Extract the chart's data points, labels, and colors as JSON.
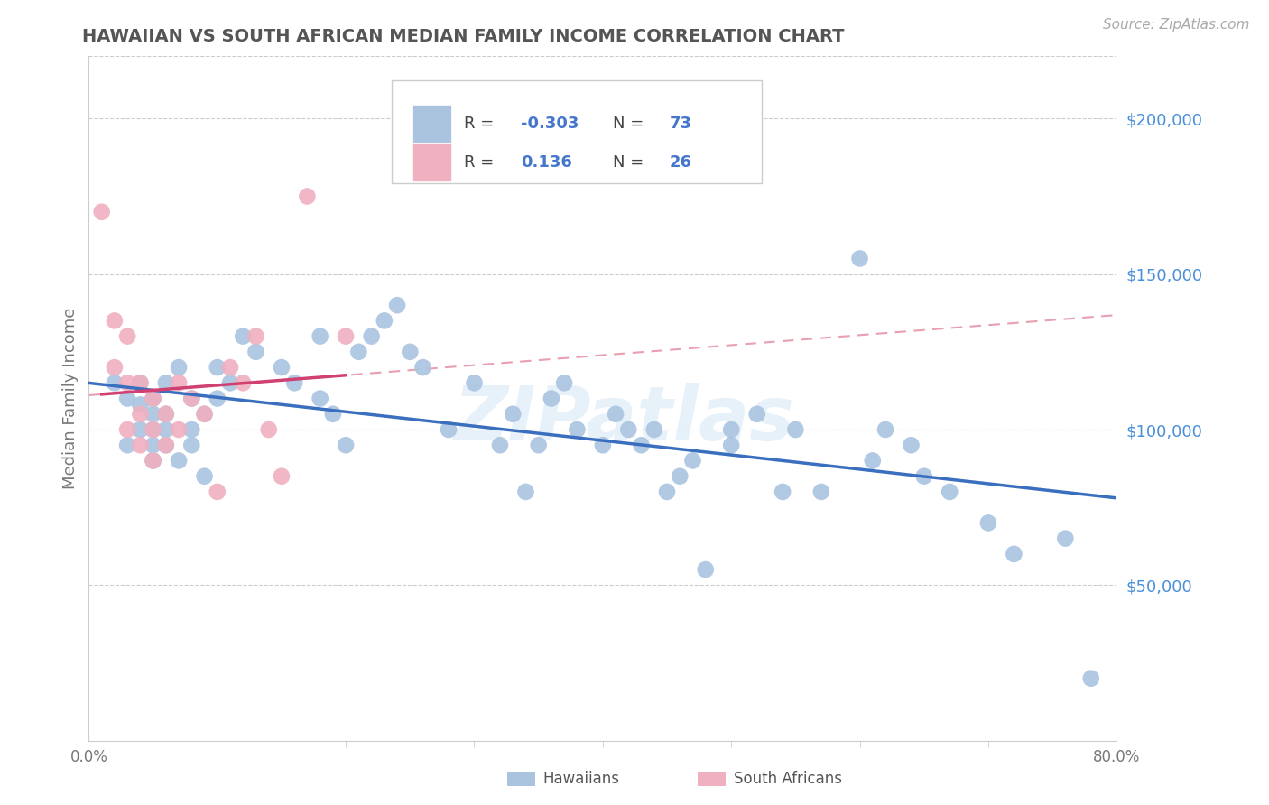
{
  "title": "HAWAIIAN VS SOUTH AFRICAN MEDIAN FAMILY INCOME CORRELATION CHART",
  "source": "Source: ZipAtlas.com",
  "ylabel": "Median Family Income",
  "watermark": "ZIPatlas",
  "ytick_values": [
    50000,
    100000,
    150000,
    200000
  ],
  "xlim": [
    0.0,
    0.8
  ],
  "ylim": [
    0,
    220000
  ],
  "blue_scatter_color": "#aac4e0",
  "pink_scatter_color": "#f0b0c0",
  "blue_line_color": "#3a6fbf",
  "pink_line_color": "#d04070",
  "pink_dash_color": "#e8a0b0",
  "grid_color": "#cccccc",
  "background_color": "#ffffff",
  "ytick_color": "#4a90d9",
  "xtick_color": "#777777",
  "title_color": "#555555",
  "source_color": "#aaaaaa",
  "legend_r_color": "#4477cc",
  "legend_r1": "-0.303",
  "legend_n1": "73",
  "legend_r2": "0.136",
  "legend_n2": "26",
  "hawaiians_x": [
    0.02,
    0.03,
    0.03,
    0.04,
    0.04,
    0.04,
    0.05,
    0.05,
    0.05,
    0.05,
    0.05,
    0.06,
    0.06,
    0.06,
    0.06,
    0.07,
    0.07,
    0.08,
    0.08,
    0.08,
    0.09,
    0.09,
    0.1,
    0.1,
    0.11,
    0.12,
    0.13,
    0.15,
    0.16,
    0.18,
    0.18,
    0.19,
    0.2,
    0.21,
    0.22,
    0.23,
    0.24,
    0.25,
    0.26,
    0.28,
    0.3,
    0.32,
    0.33,
    0.34,
    0.35,
    0.36,
    0.37,
    0.38,
    0.4,
    0.41,
    0.42,
    0.43,
    0.44,
    0.45,
    0.46,
    0.47,
    0.48,
    0.5,
    0.5,
    0.52,
    0.54,
    0.55,
    0.57,
    0.6,
    0.61,
    0.62,
    0.64,
    0.65,
    0.67,
    0.7,
    0.72,
    0.76,
    0.78
  ],
  "hawaiians_y": [
    115000,
    110000,
    95000,
    100000,
    115000,
    108000,
    100000,
    95000,
    105000,
    110000,
    90000,
    115000,
    100000,
    95000,
    105000,
    90000,
    120000,
    110000,
    95000,
    100000,
    105000,
    85000,
    110000,
    120000,
    115000,
    130000,
    125000,
    120000,
    115000,
    110000,
    130000,
    105000,
    95000,
    125000,
    130000,
    135000,
    140000,
    125000,
    120000,
    100000,
    115000,
    95000,
    105000,
    80000,
    95000,
    110000,
    115000,
    100000,
    95000,
    105000,
    100000,
    95000,
    100000,
    80000,
    85000,
    90000,
    55000,
    100000,
    95000,
    105000,
    80000,
    100000,
    80000,
    155000,
    90000,
    100000,
    95000,
    85000,
    80000,
    70000,
    60000,
    65000,
    20000
  ],
  "south_africans_x": [
    0.01,
    0.02,
    0.02,
    0.03,
    0.03,
    0.03,
    0.04,
    0.04,
    0.04,
    0.05,
    0.05,
    0.05,
    0.06,
    0.06,
    0.07,
    0.07,
    0.08,
    0.09,
    0.1,
    0.11,
    0.12,
    0.13,
    0.14,
    0.15,
    0.17,
    0.2
  ],
  "south_africans_y": [
    170000,
    135000,
    120000,
    130000,
    115000,
    100000,
    115000,
    105000,
    95000,
    110000,
    100000,
    90000,
    105000,
    95000,
    115000,
    100000,
    110000,
    105000,
    80000,
    120000,
    115000,
    130000,
    100000,
    85000,
    175000,
    130000
  ],
  "bottom_legend_items": [
    {
      "label": "Hawaiians",
      "color": "#aac4e0"
    },
    {
      "label": "South Africans",
      "color": "#f0b0c0"
    }
  ]
}
